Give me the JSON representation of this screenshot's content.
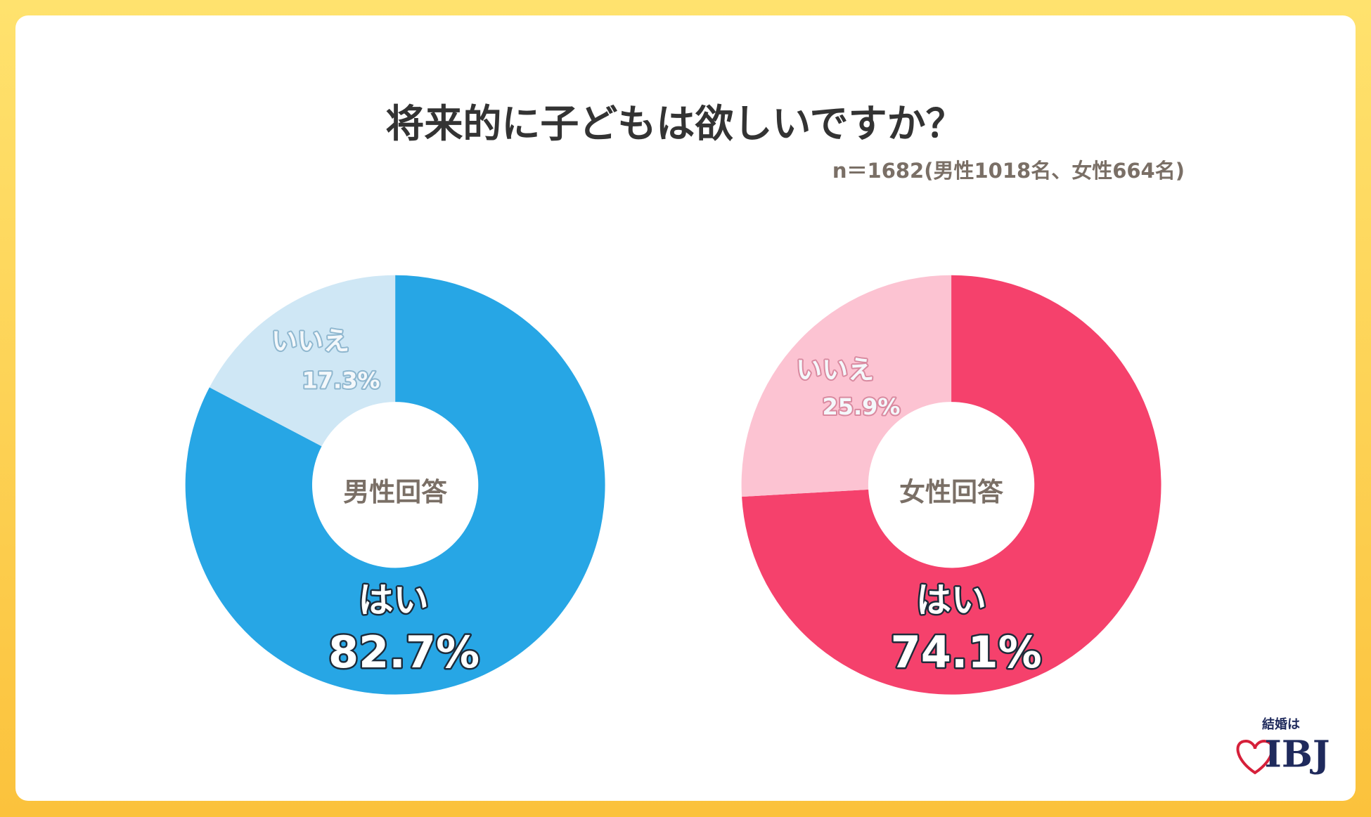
{
  "header": {
    "title": "将来的に子どもは欲しいですか？",
    "subtitle": "n＝1682(男性1018名、女性664名)"
  },
  "chart_data": [
    {
      "type": "pie",
      "center_label": "男性回答",
      "categories": [
        "はい",
        "いいえ"
      ],
      "values": [
        82.7,
        17.3
      ],
      "value_labels": [
        "82.7%",
        "17.3%"
      ],
      "colors": [
        "#27a6e5",
        "#cfe7f5"
      ]
    },
    {
      "type": "pie",
      "center_label": "女性回答",
      "categories": [
        "はい",
        "いいえ"
      ],
      "values": [
        74.1,
        25.9
      ],
      "value_labels": [
        "74.1%",
        "25.9%"
      ],
      "colors": [
        "#f5416c",
        "#fcc3d2"
      ]
    }
  ],
  "logo": {
    "tagline": "結婚は",
    "brand": "IBJ"
  }
}
